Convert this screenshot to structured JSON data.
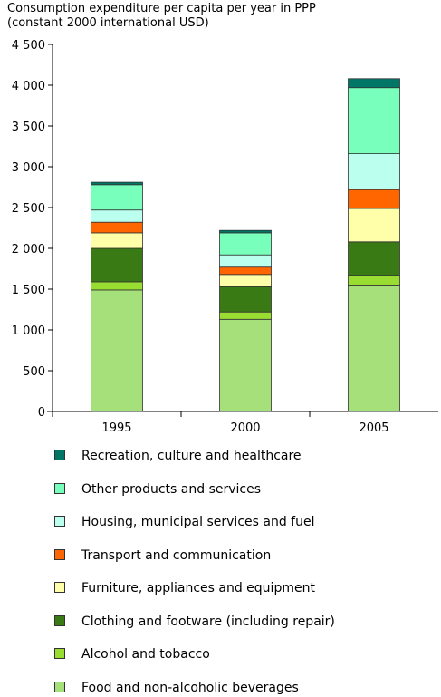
{
  "chart_data": {
    "type": "bar",
    "stacked": true,
    "title": "Consumption expenditure per capita per year in PPP",
    "subtitle": "(constant 2000 international USD)",
    "categories": [
      "1995",
      "2000",
      "2005"
    ],
    "ylim": [
      0,
      4500
    ],
    "yticks": [
      0,
      500,
      1000,
      1500,
      2000,
      2500,
      3000,
      3500,
      4000,
      4500
    ],
    "ytick_labels": [
      "0",
      "500",
      "1 000",
      "1 500",
      "2 000",
      "2 500",
      "3 000",
      "3 500",
      "4 000",
      "4 500"
    ],
    "legend_position": "bottom",
    "grid": false,
    "series": [
      {
        "name": "Food and non-alcoholic beverages",
        "color": "#a6e07a",
        "values": [
          1490,
          1130,
          1550
        ]
      },
      {
        "name": "Alcohol and tobacco",
        "color": "#99dd33",
        "values": [
          100,
          90,
          120
        ]
      },
      {
        "name": "Clothing and footware (including repair)",
        "color": "#3a7a14",
        "values": [
          410,
          310,
          410
        ]
      },
      {
        "name": "Furniture, appliances and equipment",
        "color": "#ffffaa",
        "values": [
          190,
          150,
          410
        ]
      },
      {
        "name": "Transport and communication",
        "color": "#ff6600",
        "values": [
          130,
          90,
          230
        ]
      },
      {
        "name": "Housing, municipal services and fuel",
        "color": "#bbffee",
        "values": [
          150,
          150,
          440
        ]
      },
      {
        "name": "Other products and services",
        "color": "#77ffbb",
        "values": [
          310,
          270,
          810
        ]
      },
      {
        "name": "Recreation, culture and healthcare",
        "color": "#007766",
        "values": [
          30,
          30,
          110
        ]
      }
    ]
  }
}
